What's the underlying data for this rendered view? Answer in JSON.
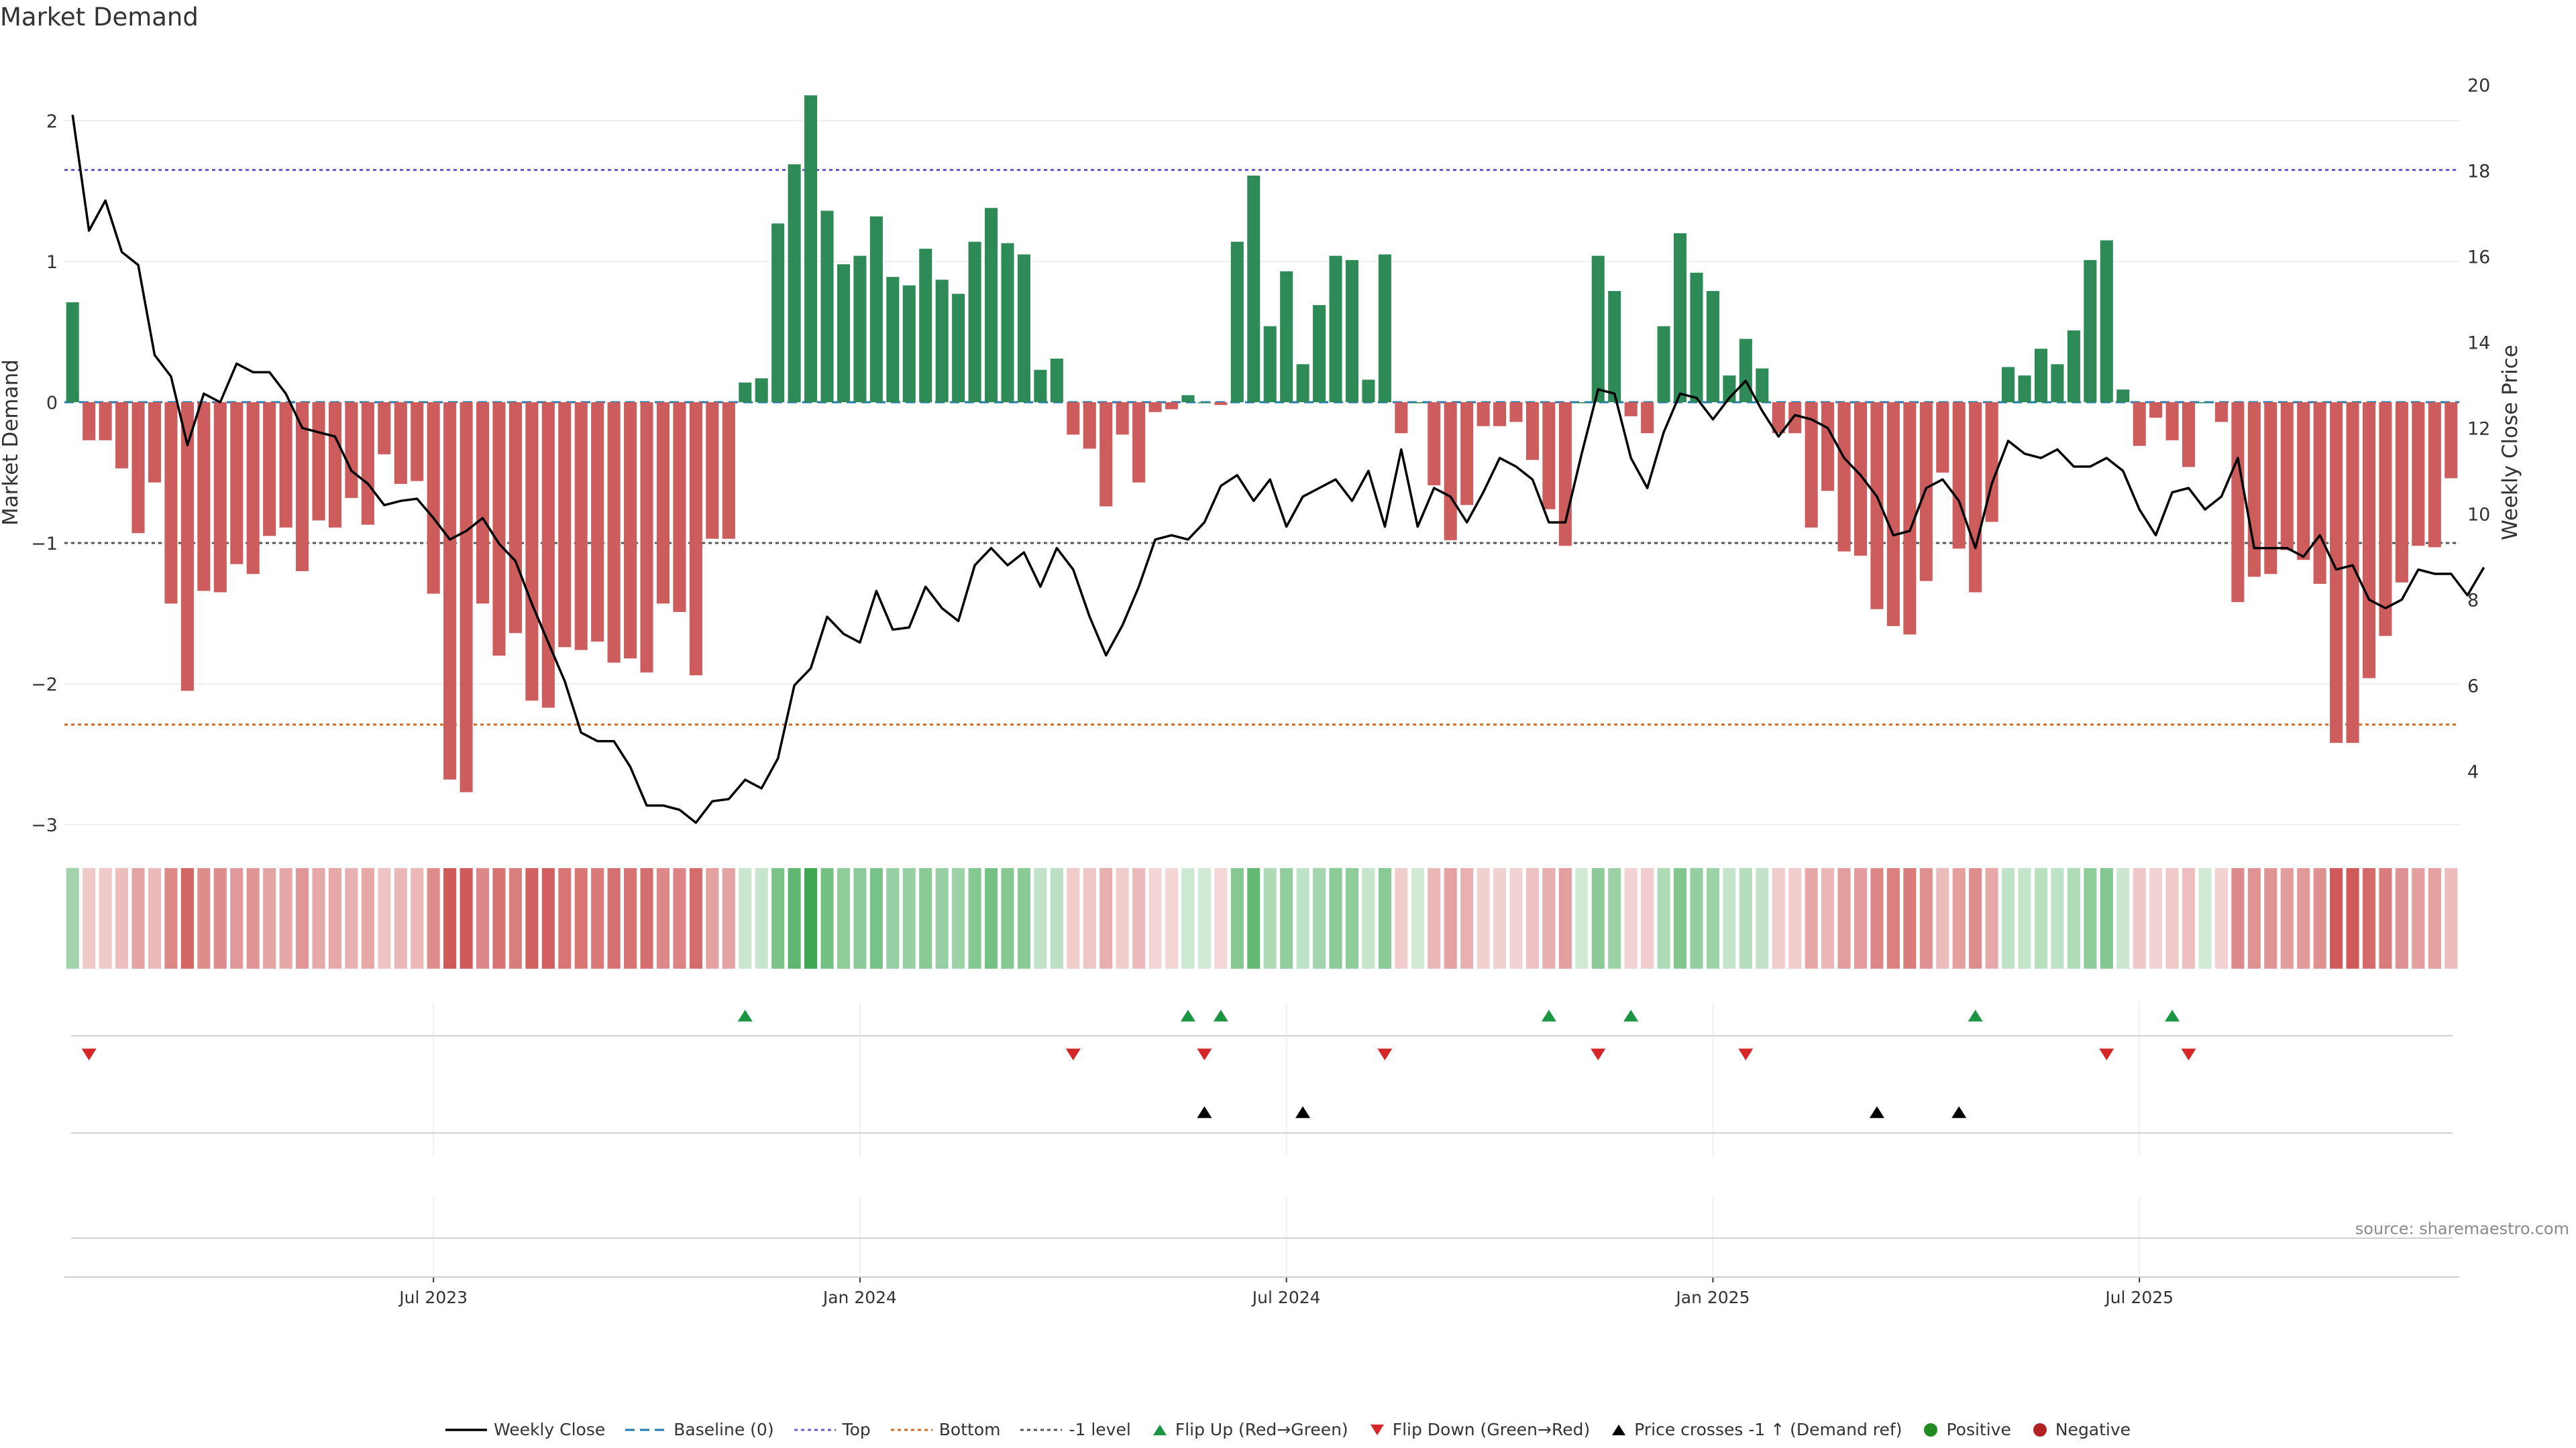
{
  "title": "Market Demand",
  "source": "source: sharemaestro.com",
  "colors": {
    "positive": "#2e8b57",
    "negative": "#cd5c5c",
    "price": "#000000",
    "baseline": "#1f77b4",
    "top": "#6a5acd",
    "bottom": "#d2691e",
    "minus1": "#555555",
    "flip_up": "#1a9641",
    "flip_down": "#d62728",
    "cross": "#000000",
    "pos_dot": "#228b22",
    "neg_dot": "#b22222"
  },
  "chart_data": {
    "type": "bar",
    "title": "Market Demand",
    "ylabel": "Market Demand",
    "y2label": "Weekly Close Price",
    "ylim": [
      -3.2,
      2.5
    ],
    "y2lim": [
      2.6,
      20.6
    ],
    "y_ticks": [
      2,
      1,
      0,
      -1,
      -2,
      -3
    ],
    "y_tick_labels": [
      "2",
      "1",
      "0",
      "−1",
      "−2",
      "−3"
    ],
    "y2_ticks": [
      20,
      18,
      16,
      14,
      12,
      10,
      8,
      6,
      4
    ],
    "x_tick_labels": [
      "Jul 2023",
      "Jan 2024",
      "Jul 2024",
      "Jan 2025",
      "Jul 2025"
    ],
    "x_tick_index": [
      22,
      48,
      74,
      100,
      126
    ],
    "reference_lines": {
      "baseline": 0,
      "top": 1.65,
      "bottom": -2.29,
      "minus_one": -1
    },
    "demand": [
      0.71,
      -0.27,
      -0.27,
      -0.47,
      -0.93,
      -0.57,
      -1.43,
      -2.05,
      -1.34,
      -1.35,
      -1.15,
      -1.22,
      -0.95,
      -0.89,
      -1.2,
      -0.84,
      -0.89,
      -0.68,
      -0.87,
      -0.37,
      -0.58,
      -0.56,
      -1.36,
      -2.68,
      -2.77,
      -1.43,
      -1.8,
      -1.64,
      -2.12,
      -2.17,
      -1.74,
      -1.76,
      -1.7,
      -1.85,
      -1.82,
      -1.92,
      -1.43,
      -1.49,
      -1.94,
      -0.97,
      -0.97,
      0.14,
      0.17,
      1.27,
      1.69,
      2.18,
      1.36,
      0.98,
      1.04,
      1.32,
      0.89,
      0.83,
      1.09,
      0.87,
      0.77,
      1.14,
      1.38,
      1.13,
      1.05,
      0.23,
      0.31,
      -0.23,
      -0.33,
      -0.74,
      -0.23,
      -0.57,
      -0.07,
      -0.05,
      0.05,
      0.0,
      -0.02,
      1.14,
      1.61,
      0.54,
      0.93,
      0.27,
      0.69,
      1.04,
      1.01,
      0.16,
      1.05,
      -0.22,
      0.0,
      -0.59,
      -0.98,
      -0.73,
      -0.17,
      -0.17,
      -0.14,
      -0.41,
      -0.76,
      -1.02,
      0.0,
      1.04,
      0.79,
      -0.1,
      -0.22,
      0.54,
      1.2,
      0.92,
      0.79,
      0.19,
      0.45,
      0.24,
      -0.22,
      -0.22,
      -0.89,
      -0.63,
      -1.06,
      -1.09,
      -1.47,
      -1.59,
      -1.65,
      -1.27,
      -0.5,
      -1.04,
      -1.35,
      -0.85,
      0.25,
      0.19,
      0.38,
      0.27,
      0.51,
      1.01,
      1.15,
      0.09,
      -0.31,
      -0.11,
      -0.27,
      -0.46,
      0.0,
      -0.14,
      -1.42,
      -1.24,
      -1.22,
      -1.05,
      -1.12,
      -1.29,
      -2.42,
      -2.42,
      -1.96,
      -1.66,
      -1.28,
      -1.02,
      -1.03,
      -0.54
    ],
    "price": [
      19.3,
      16.6,
      17.3,
      16.1,
      15.8,
      13.7,
      13.2,
      11.6,
      12.8,
      12.6,
      13.5,
      13.3,
      13.3,
      12.8,
      12.0,
      11.9,
      11.8,
      11.0,
      10.7,
      10.2,
      10.3,
      10.35,
      9.9,
      9.4,
      9.6,
      9.9,
      9.3,
      8.9,
      7.9,
      7.0,
      6.1,
      4.9,
      4.7,
      4.7,
      4.1,
      3.2,
      3.2,
      3.1,
      2.8,
      3.3,
      3.35,
      3.8,
      3.6,
      4.3,
      6.0,
      6.4,
      7.6,
      7.2,
      7.0,
      8.2,
      7.3,
      7.35,
      8.3,
      7.8,
      7.5,
      8.8,
      9.2,
      8.8,
      9.1,
      8.3,
      9.2,
      8.7,
      7.6,
      6.7,
      7.4,
      8.3,
      9.4,
      9.5,
      9.4,
      9.8,
      10.65,
      10.9,
      10.3,
      10.8,
      9.7,
      10.4,
      10.6,
      10.8,
      10.3,
      11.0,
      9.7,
      11.5,
      9.7,
      10.6,
      10.4,
      9.8,
      10.5,
      11.3,
      11.1,
      10.8,
      9.8,
      9.8,
      11.4,
      12.9,
      12.8,
      11.3,
      10.6,
      11.9,
      12.8,
      12.7,
      12.2,
      12.7,
      13.1,
      12.4,
      11.8,
      12.3,
      12.2,
      12.0,
      11.3,
      10.9,
      10.4,
      9.5,
      9.6,
      10.6,
      10.8,
      10.3,
      9.2,
      10.7,
      11.7,
      11.4,
      11.3,
      11.5,
      11.1,
      11.1,
      11.3,
      11.0,
      10.1,
      9.5,
      10.5,
      10.6,
      10.1,
      10.4,
      11.3,
      9.2,
      9.2,
      9.2,
      9.0,
      9.5,
      8.7,
      8.8,
      8.0,
      7.8,
      8.0,
      8.7,
      8.6,
      8.6,
      8.1,
      8.75
    ],
    "flip_up": [
      41,
      68,
      70,
      90,
      95,
      116,
      128
    ],
    "flip_down": [
      1,
      61,
      69,
      80,
      93,
      102,
      124,
      129
    ],
    "price_cross_up": [
      69,
      75,
      110,
      115
    ]
  },
  "legend": [
    {
      "label": "Weekly Close",
      "type": "line",
      "color": "#000000"
    },
    {
      "label": "Baseline (0)",
      "type": "dashed",
      "color": "#1f77b4"
    },
    {
      "label": "Top",
      "type": "dotted",
      "color": "#6a5acd"
    },
    {
      "label": "Bottom",
      "type": "dotted",
      "color": "#d2691e"
    },
    {
      "label": "-1 level",
      "type": "dotted",
      "color": "#555555"
    },
    {
      "label": "Flip Up (Red→Green)",
      "type": "tri-up",
      "color": "#1a9641"
    },
    {
      "label": "Flip Down (Green→Red)",
      "type": "tri-down",
      "color": "#d62728"
    },
    {
      "label": "Price crosses -1 ↑ (Demand ref)",
      "type": "tri-up",
      "color": "#000000"
    },
    {
      "label": "Positive",
      "type": "dot",
      "color": "#228b22"
    },
    {
      "label": "Negative",
      "type": "dot",
      "color": "#b22222"
    }
  ]
}
